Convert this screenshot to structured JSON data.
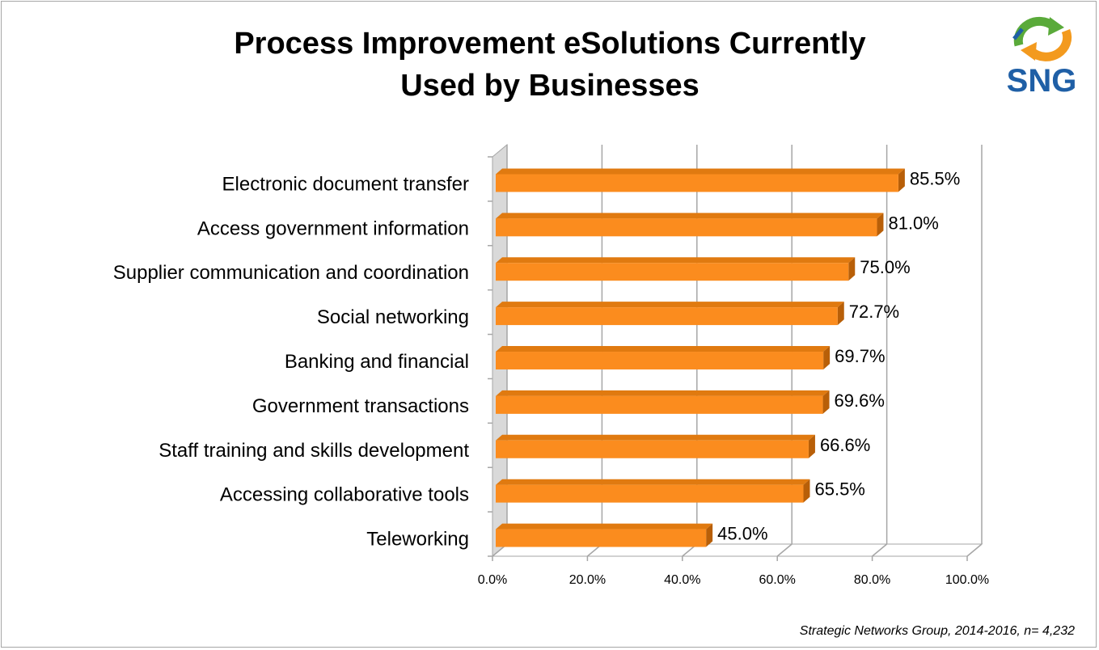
{
  "title_lines": [
    "Process Improvement eSolutions Currently",
    "Used by Businesses"
  ],
  "logo": {
    "text": "SNG",
    "colors": {
      "blue": "#1f5fa6",
      "green": "#5aaa3a",
      "orange": "#f39a1e"
    }
  },
  "source_note": "Strategic Networks Group, 2014-2016, n= 4,232",
  "chart_data": {
    "type": "bar",
    "orientation": "horizontal",
    "title": "Process Improvement eSolutions Currently Used by Businesses",
    "categories": [
      "Electronic document transfer",
      "Access government information",
      "Supplier communication and coordination",
      "Social networking",
      "Banking and financial",
      "Government transactions",
      "Staff training and skills development",
      "Accessing collaborative tools",
      "Teleworking"
    ],
    "values": [
      85.5,
      81.0,
      75.0,
      72.7,
      69.7,
      69.6,
      66.6,
      65.5,
      45.0
    ],
    "value_labels": [
      "85.5%",
      "81.0%",
      "75.0%",
      "72.7%",
      "69.7%",
      "69.6%",
      "66.6%",
      "65.5%",
      "45.0%"
    ],
    "xlim": [
      0,
      100
    ],
    "xticks": [
      0,
      20,
      40,
      60,
      80,
      100
    ],
    "xtick_labels": [
      "0.0%",
      "20.0%",
      "40.0%",
      "60.0%",
      "80.0%",
      "100.0%"
    ],
    "xlabel": "",
    "ylabel": "",
    "grid": true,
    "legend": "none",
    "style": "3d",
    "colors": {
      "bar": "#fb8c1e",
      "bar_top": "#e07a10",
      "bar_side": "#b85f08",
      "grid": "#a6a6a6",
      "wall": "#d9d9d9"
    }
  }
}
